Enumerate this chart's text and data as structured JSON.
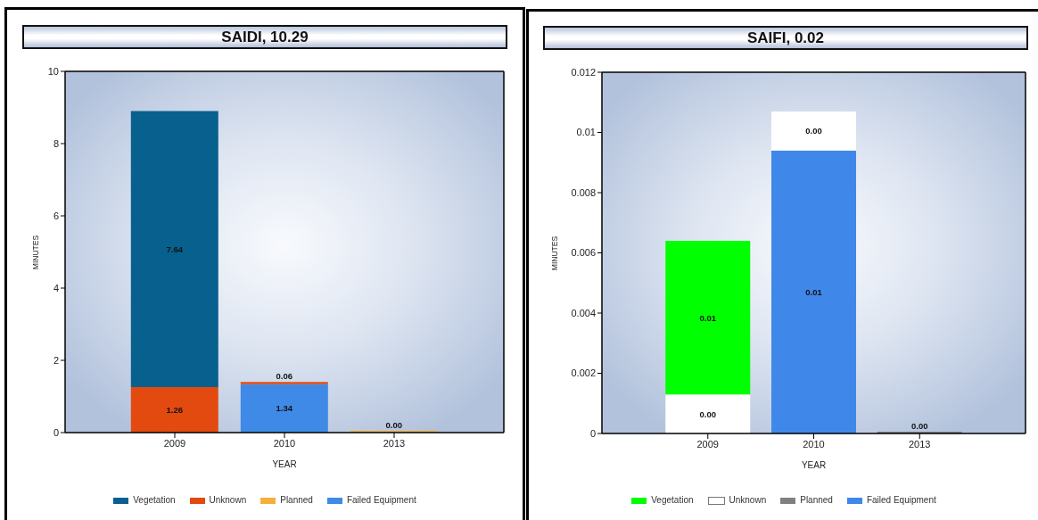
{
  "chart_data": [
    {
      "type": "bar",
      "title": "SAIDI, 10.29",
      "xlabel": "YEAR",
      "ylabel": "MINUTES",
      "categories": [
        "2009",
        "2010",
        "2013"
      ],
      "stacked": true,
      "series": [
        {
          "name": "Failed Equipment",
          "color": "#3f8ae6",
          "values": [
            null,
            1.34,
            null
          ],
          "value_labels": [
            null,
            "1.34",
            null
          ]
        },
        {
          "name": "Planned",
          "color": "#f7ae3a",
          "values": [
            null,
            null,
            0
          ],
          "value_labels": [
            null,
            null,
            "0.00"
          ]
        },
        {
          "name": "Unknown",
          "color": "#e34a0f",
          "values": [
            1.26,
            0.06,
            null
          ],
          "value_labels": [
            "1.26",
            "0.06",
            null
          ]
        },
        {
          "name": "Vegetation",
          "color": "#08608f",
          "values": [
            7.64,
            null,
            null
          ],
          "value_labels": [
            "7.64",
            null,
            null
          ]
        }
      ],
      "ylim": [
        0,
        10
      ],
      "yticks": [
        0,
        2,
        4,
        6,
        8,
        10
      ],
      "legend": "bottom"
    },
    {
      "type": "bar",
      "title": "SAIFI, 0.02",
      "xlabel": "YEAR",
      "ylabel": "MINUTES",
      "categories": [
        "2009",
        "2010",
        "2013"
      ],
      "stacked": true,
      "series": [
        {
          "name": "Failed Equipment",
          "color": "#3f88ea",
          "values": [
            null,
            0.0094,
            null
          ],
          "value_labels": [
            null,
            "0.01",
            null
          ]
        },
        {
          "name": "Planned",
          "color": "#808080",
          "values": [
            null,
            null,
            0
          ],
          "value_labels": [
            null,
            null,
            "0.00"
          ]
        },
        {
          "name": "Unknown",
          "color": "#ffffff",
          "values": [
            0.0013,
            0.0013,
            null
          ],
          "value_labels": [
            "0.00",
            "0.00",
            null
          ]
        },
        {
          "name": "Vegetation",
          "color": "#00ff00",
          "values": [
            0.0051,
            null,
            null
          ],
          "value_labels": [
            "0.01",
            null,
            null
          ]
        }
      ],
      "ylim": [
        0,
        0.012
      ],
      "yticks": [
        0,
        0.002,
        0.004,
        0.006,
        0.008,
        0.01,
        0.012
      ],
      "legend": "bottom"
    }
  ]
}
